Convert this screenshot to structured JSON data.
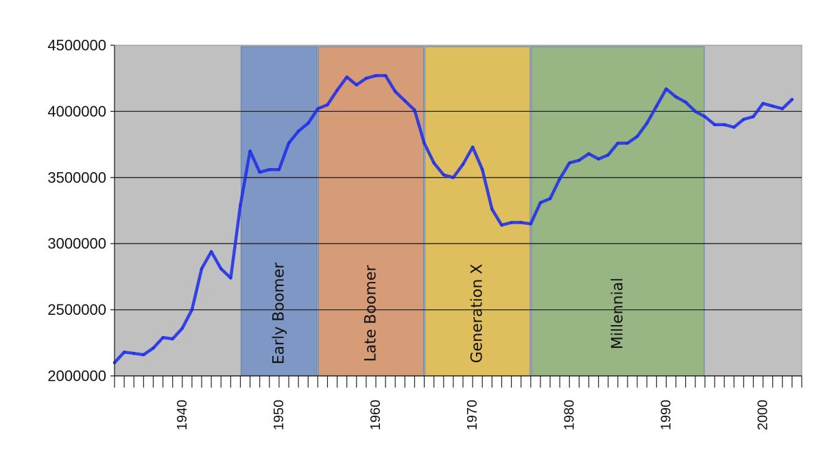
{
  "chart_data": {
    "type": "line",
    "title": "",
    "xlabel": "",
    "ylabel": "",
    "xlim": [
      1933,
      2004
    ],
    "ylim": [
      2000000,
      4500000
    ],
    "y_ticks": [
      "4500000",
      "4000000",
      "3500000",
      "3000000",
      "2500000",
      "2000000"
    ],
    "x_ticks": [
      "1940",
      "1950",
      "1960",
      "1970",
      "1980",
      "1990",
      "2000"
    ],
    "grid": "horizontal",
    "background": "#c0c0c0",
    "bands": [
      {
        "label": "Early Boomer",
        "from": 1946,
        "to": 1954,
        "color": "#7f97c4"
      },
      {
        "label": "Late Boomer",
        "from": 1954,
        "to": 1965,
        "color": "#d69c78"
      },
      {
        "label": "Generation X",
        "from": 1965,
        "to": 1976,
        "color": "#dfbe5e"
      },
      {
        "label": "Millennial",
        "from": 1976,
        "to": 1994,
        "color": "#98b584"
      }
    ],
    "series": [
      {
        "color": "#1f2fe8",
        "x": [
          1933,
          1934,
          1935,
          1936,
          1937,
          1938,
          1939,
          1940,
          1941,
          1942,
          1943,
          1944,
          1945,
          1946,
          1947,
          1948,
          1949,
          1950,
          1951,
          1952,
          1953,
          1954,
          1955,
          1956,
          1957,
          1958,
          1959,
          1960,
          1961,
          1962,
          1963,
          1964,
          1965,
          1966,
          1967,
          1968,
          1969,
          1970,
          1971,
          1972,
          1973,
          1974,
          1975,
          1976,
          1977,
          1978,
          1979,
          1980,
          1981,
          1982,
          1983,
          1984,
          1985,
          1986,
          1987,
          1988,
          1989,
          1990,
          1991,
          1992,
          1993,
          1994,
          1995,
          1996,
          1997,
          1998,
          1999,
          2000,
          2001,
          2002,
          2003
        ],
        "values": [
          2100000,
          2180000,
          2170000,
          2160000,
          2210000,
          2290000,
          2280000,
          2360000,
          2500000,
          2810000,
          2940000,
          2810000,
          2740000,
          3290000,
          3700000,
          3540000,
          3560000,
          3560000,
          3760000,
          3850000,
          3910000,
          4020000,
          4050000,
          4160000,
          4260000,
          4200000,
          4250000,
          4270000,
          4270000,
          4150000,
          4080000,
          4010000,
          3760000,
          3610000,
          3520000,
          3500000,
          3600000,
          3730000,
          3560000,
          3260000,
          3140000,
          3160000,
          3160000,
          3150000,
          3310000,
          3340000,
          3490000,
          3610000,
          3630000,
          3680000,
          3640000,
          3670000,
          3760000,
          3760000,
          3810000,
          3910000,
          4040000,
          4170000,
          4110000,
          4070000,
          4000000,
          3960000,
          3900000,
          3900000,
          3880000,
          3940000,
          3960000,
          4060000,
          4040000,
          4020000,
          4090000
        ]
      }
    ]
  }
}
